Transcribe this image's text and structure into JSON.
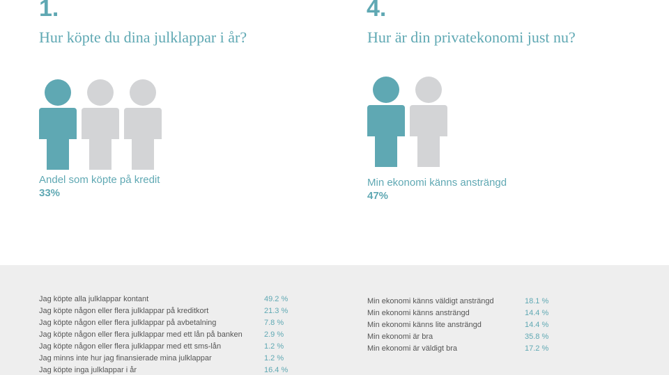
{
  "left": {
    "number": "1.",
    "question": "Hur köpte du dina julklappar i år?",
    "figures": {
      "highlighted": 1,
      "total": 3
    },
    "stat_label": "Andel som köpte på kredit",
    "stat_value": "33%",
    "rows": [
      {
        "label": "Jag köpte alla julklappar kontant",
        "value": "49.2 %"
      },
      {
        "label": "Jag köpte någon eller flera julklappar på kreditkort",
        "value": "21.3 %"
      },
      {
        "label": "Jag köpte någon eller flera julklappar på avbetalning",
        "value": "7.8 %"
      },
      {
        "label": "Jag köpte någon eller flera julklappar med ett lån på banken",
        "value": "2.9 %"
      },
      {
        "label": "Jag köpte någon eller flera julklappar med ett sms-lån",
        "value": "1.2 %"
      },
      {
        "label": "Jag minns inte hur jag finansierade mina julklappar",
        "value": "1.2 %"
      },
      {
        "label": "Jag köpte inga julklappar i år",
        "value": "16.4 %"
      }
    ]
  },
  "right": {
    "number": "4.",
    "question": "Hur är din privatekonomi just nu?",
    "figures": {
      "highlighted": 1,
      "total": 2
    },
    "stat_label": "Min ekonomi känns ansträngd",
    "stat_value": "47%",
    "rows": [
      {
        "label": "Min ekonomi känns väldigt ansträngd",
        "value": "18.1 %"
      },
      {
        "label": "Min ekonomi känns ansträngd",
        "value": "14.4 %"
      },
      {
        "label": "Min ekonomi känns lite ansträngd",
        "value": "14.4 %"
      },
      {
        "label": "Min ekonomi är bra",
        "value": "35.8 %"
      },
      {
        "label": "Min ekonomi är väldigt bra",
        "value": "17.2 %"
      }
    ]
  },
  "colors": {
    "accent": "#5fa8b3",
    "inactive": "#d3d4d6",
    "panel": "#eeeeee",
    "text": "#555555"
  }
}
